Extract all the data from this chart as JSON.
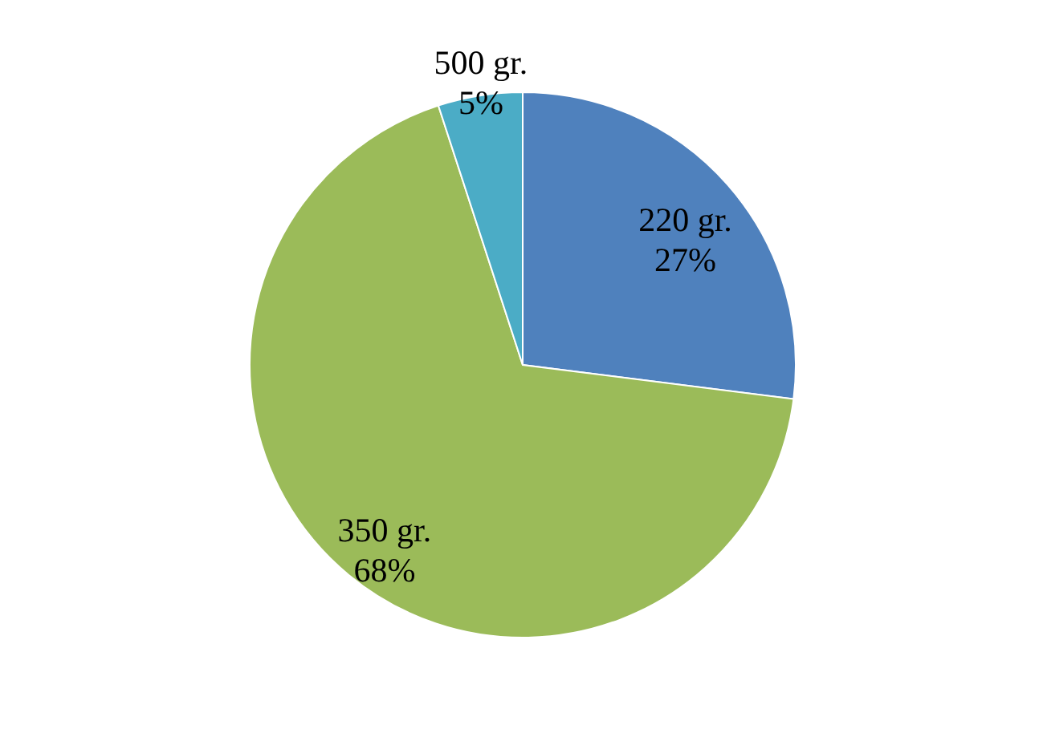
{
  "chart_data": {
    "type": "pie",
    "categories": [
      "220 gr.",
      "350 gr.",
      "500 gr."
    ],
    "values": [
      27,
      68,
      5
    ],
    "value_labels": [
      "27%",
      "68%",
      "5%"
    ],
    "colors": [
      "#4f81bd",
      "#9bbb59",
      "#4bacc6"
    ]
  }
}
